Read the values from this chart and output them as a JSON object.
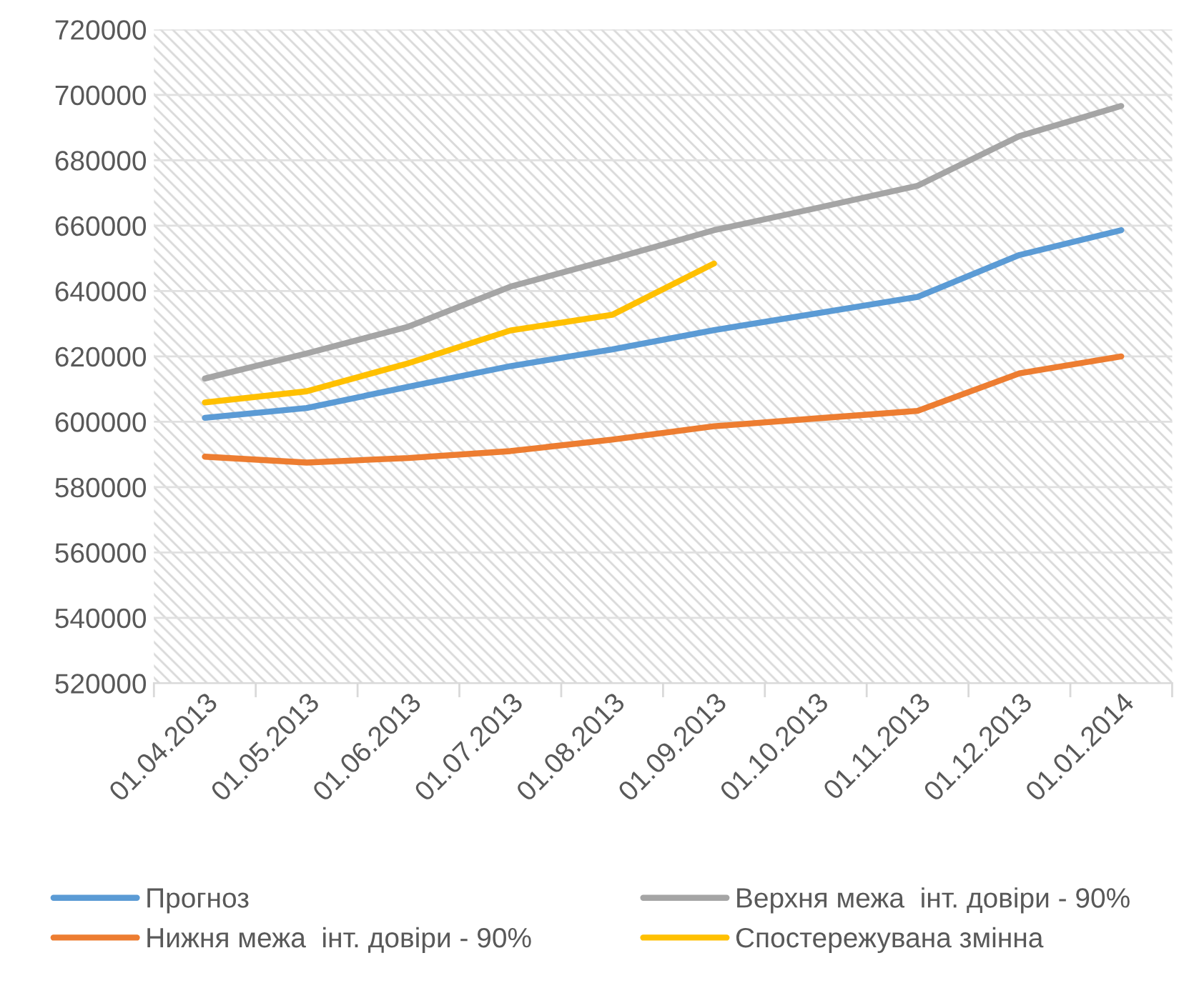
{
  "chart_data": {
    "type": "line",
    "categories": [
      "01.04.2013",
      "01.05.2013",
      "01.06.2013",
      "01.07.2013",
      "01.08.2013",
      "01.09.2013",
      "01.10.2013",
      "01.11.2013",
      "01.12.2013",
      "01.01.2014"
    ],
    "series": [
      {
        "name": "Прогноз",
        "color": "#5b9bd5",
        "values": [
          601200,
          604200,
          610700,
          617000,
          622100,
          628000,
          633100,
          638200,
          651000,
          658600
        ]
      },
      {
        "name": "Нижня межа  інт. довіри - 90%",
        "color": "#ed7d31",
        "values": [
          589300,
          587500,
          588900,
          591000,
          594500,
          598600,
          601000,
          603300,
          614800,
          620000
        ]
      },
      {
        "name": "Верхня межа  інт. довіри - 90%",
        "color": "#a5a5a5",
        "values": [
          613200,
          620900,
          629100,
          641300,
          649800,
          658600,
          665300,
          672200,
          687400,
          696600
        ]
      },
      {
        "name": "Спостережувана змінна",
        "color": "#ffc000",
        "values": [
          605900,
          609300,
          617900,
          627900,
          632700,
          648400,
          null,
          null,
          null,
          null
        ]
      }
    ],
    "ylim": [
      520000,
      720000
    ],
    "yticks": [
      520000,
      540000,
      560000,
      580000,
      600000,
      620000,
      640000,
      660000,
      680000,
      700000,
      720000
    ],
    "grid": "y",
    "legend": "bottom",
    "marker": "none",
    "line_style": "solid"
  }
}
